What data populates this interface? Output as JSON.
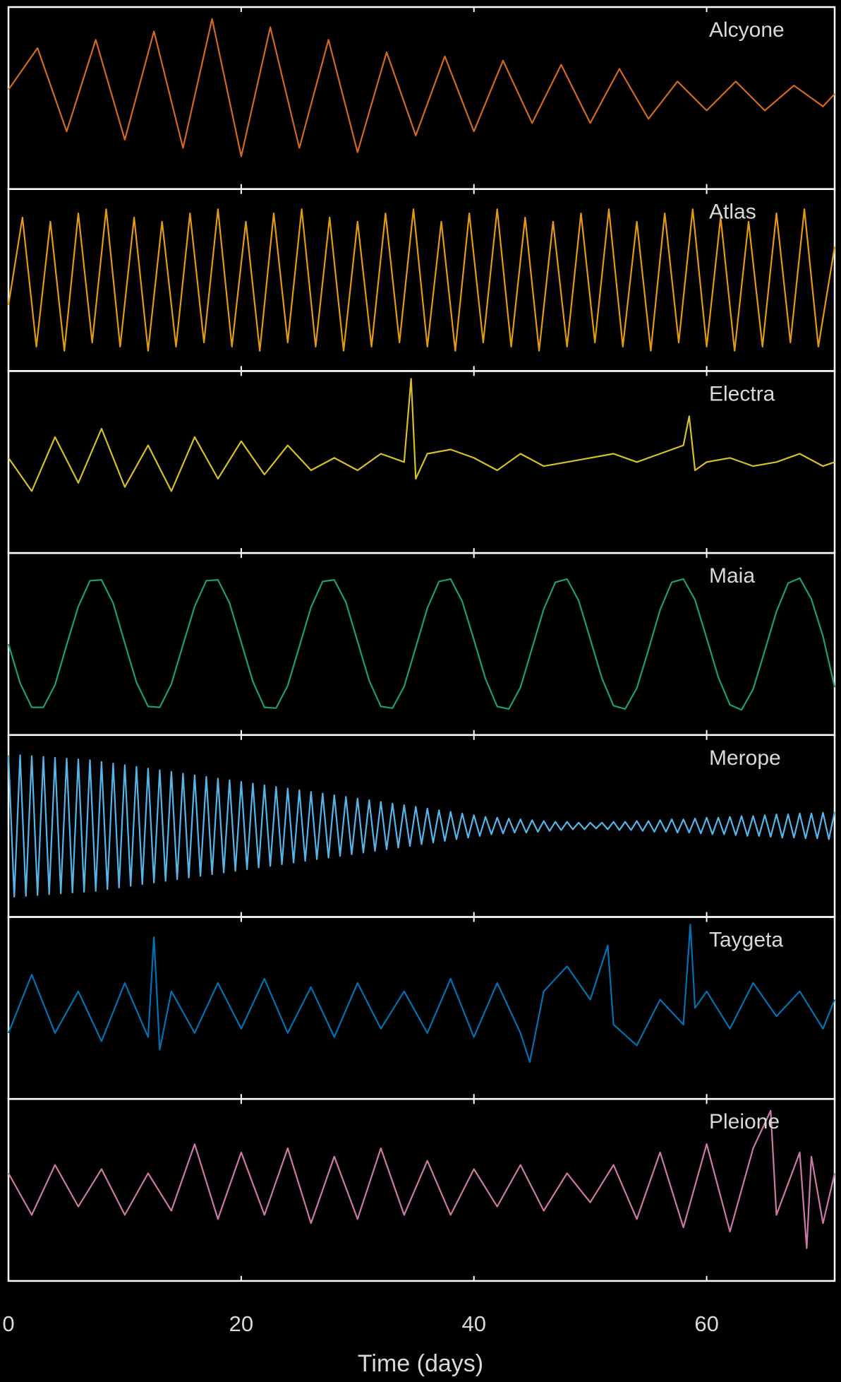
{
  "chart_data": {
    "type": "line",
    "title": "",
    "xlabel": "Time (days)",
    "xlim": [
      0,
      71
    ],
    "xticks": [
      "0",
      "20",
      "40",
      "60"
    ],
    "xtick_values": [
      0,
      20,
      40,
      60
    ],
    "grid": false,
    "background": "#000000",
    "axis_color": "#ffffff",
    "series": [
      {
        "name": "Alcyone",
        "color": "#d2691e",
        "x": [
          0,
          2.5,
          5,
          7.5,
          10,
          12.5,
          15,
          17.5,
          20,
          22.5,
          25,
          27.5,
          30,
          32.5,
          35,
          37.5,
          40,
          42.5,
          45,
          47.5,
          50,
          52.5,
          55,
          57.5,
          60,
          62.5,
          65,
          67.5,
          70,
          71
        ],
        "y": [
          0.1,
          0.6,
          -0.4,
          0.7,
          -0.5,
          0.8,
          -0.6,
          0.95,
          -0.7,
          0.85,
          -0.6,
          0.7,
          -0.65,
          0.55,
          -0.45,
          0.5,
          -0.4,
          0.45,
          -0.3,
          0.4,
          -0.3,
          0.35,
          -0.25,
          0.2,
          -0.15,
          0.2,
          -0.15,
          0.15,
          -0.1,
          0.05
        ]
      },
      {
        "name": "Atlas",
        "color": "#e39a12",
        "x": [
          0,
          1.2,
          2.4,
          3.6,
          4.8,
          6,
          7.2,
          8.4,
          9.6,
          10.8,
          12,
          13.2,
          14.4,
          15.6,
          16.8,
          18,
          19.2,
          20.4,
          21.6,
          22.8,
          24,
          25.2,
          26.4,
          27.6,
          28.8,
          30,
          31.2,
          32.4,
          33.6,
          34.8,
          36,
          37.2,
          38.4,
          39.6,
          40.8,
          42,
          43.2,
          44.4,
          45.6,
          46.8,
          48,
          49.2,
          50.4,
          51.6,
          52.8,
          54,
          55.2,
          56.4,
          57.6,
          58.8,
          60,
          61.2,
          62.4,
          63.6,
          64.8,
          66,
          67.2,
          68.4,
          69.6,
          71
        ],
        "y": [
          -0.3,
          0.75,
          -0.8,
          0.7,
          -0.85,
          0.8,
          -0.75,
          0.85,
          -0.8,
          0.75,
          -0.85,
          0.7,
          -0.8,
          0.8,
          -0.75,
          0.85,
          -0.8,
          0.7,
          -0.85,
          0.8,
          -0.75,
          0.85,
          -0.8,
          0.75,
          -0.85,
          0.7,
          -0.8,
          0.8,
          -0.75,
          0.85,
          -0.8,
          0.7,
          -0.85,
          0.8,
          -0.75,
          0.85,
          -0.8,
          0.75,
          -0.85,
          0.7,
          -0.8,
          0.8,
          -0.75,
          0.85,
          -0.8,
          0.7,
          -0.85,
          0.8,
          -0.75,
          0.85,
          -0.8,
          0.75,
          -0.85,
          0.7,
          -0.8,
          0.8,
          -0.75,
          0.85,
          -0.8,
          0.4
        ]
      },
      {
        "name": "Electra",
        "color": "#d6c02a",
        "x": [
          0,
          2,
          4,
          6,
          8,
          10,
          12,
          14,
          16,
          18,
          20,
          22,
          24,
          26,
          28,
          30,
          32,
          34,
          34.6,
          35,
          36,
          38,
          40,
          42,
          44,
          46,
          48,
          50,
          52,
          54,
          56,
          58,
          58.5,
          59,
          60,
          62,
          64,
          66,
          68,
          70,
          71
        ],
        "y": [
          0.05,
          -0.35,
          0.3,
          -0.25,
          0.4,
          -0.3,
          0.2,
          -0.35,
          0.3,
          -0.2,
          0.25,
          -0.15,
          0.2,
          -0.1,
          0.05,
          -0.1,
          0.1,
          0.0,
          1.0,
          -0.2,
          0.1,
          0.15,
          0.05,
          -0.1,
          0.1,
          -0.05,
          0.0,
          0.05,
          0.1,
          0.0,
          0.1,
          0.2,
          0.55,
          -0.1,
          0.0,
          0.05,
          -0.05,
          0.0,
          0.1,
          -0.05,
          0.0
        ]
      },
      {
        "name": "Maia",
        "color": "#1b9e77",
        "x": [
          0,
          1,
          2,
          3,
          4,
          5,
          6,
          7,
          8,
          9,
          10,
          11,
          12,
          13,
          14,
          15,
          16,
          17,
          18,
          19,
          20,
          21,
          22,
          23,
          24,
          25,
          26,
          27,
          28,
          29,
          30,
          31,
          32,
          33,
          34,
          35,
          36,
          37,
          38,
          39,
          40,
          41,
          42,
          43,
          44,
          45,
          46,
          47,
          48,
          49,
          50,
          51,
          52,
          53,
          54,
          55,
          56,
          57,
          58,
          59,
          60,
          61,
          62,
          63,
          64,
          65,
          66,
          67,
          68,
          69,
          70,
          71
        ],
        "y": [
          0.0,
          -0.47,
          -0.76,
          -0.76,
          -0.49,
          -0.01,
          0.45,
          0.76,
          0.77,
          0.49,
          0.01,
          -0.46,
          -0.75,
          -0.76,
          -0.48,
          -0.01,
          0.45,
          0.76,
          0.77,
          0.49,
          0.02,
          -0.45,
          -0.76,
          -0.77,
          -0.5,
          -0.03,
          0.44,
          0.75,
          0.77,
          0.5,
          0.03,
          -0.44,
          -0.75,
          -0.77,
          -0.51,
          -0.04,
          0.43,
          0.75,
          0.78,
          0.51,
          0.05,
          -0.42,
          -0.75,
          -0.78,
          -0.52,
          -0.05,
          0.42,
          0.74,
          0.78,
          0.52,
          0.06,
          -0.41,
          -0.74,
          -0.78,
          -0.53,
          -0.07,
          0.41,
          0.74,
          0.78,
          0.53,
          0.07,
          -0.4,
          -0.73,
          -0.79,
          -0.54,
          -0.08,
          0.39,
          0.73,
          0.79,
          0.54,
          0.09,
          -0.52
        ]
      },
      {
        "name": "Merope",
        "color": "#56b4e9",
        "x": [
          0,
          0.5,
          1,
          1.5,
          2,
          2.5,
          3,
          3.5,
          4,
          4.5,
          5,
          5.5,
          6,
          6.5,
          7,
          7.5,
          8,
          8.5,
          9,
          9.5,
          10,
          10.5,
          11,
          11.5,
          12,
          12.5,
          13,
          13.5,
          14,
          14.5,
          15,
          15.5,
          16,
          16.5,
          17,
          17.5,
          18,
          18.5,
          19,
          19.5,
          20,
          20.5,
          21,
          21.5,
          22,
          22.5,
          23,
          23.5,
          24,
          24.5,
          25,
          25.5,
          26,
          26.5,
          27,
          27.5,
          28,
          28.5,
          29,
          29.5,
          30,
          30.5,
          31,
          31.5,
          32,
          32.5,
          33,
          33.5,
          34,
          34.5,
          35,
          35.5,
          36,
          36.5,
          37,
          37.5,
          38,
          38.5,
          39,
          39.5,
          40,
          40.5,
          41,
          41.5,
          42,
          42.5,
          43,
          43.5,
          44,
          44.5,
          45,
          45.5,
          46,
          46.5,
          47,
          47.5,
          48,
          48.5,
          49,
          49.5,
          50,
          50.5,
          51,
          51.5,
          52,
          52.5,
          53,
          53.5,
          54,
          54.5,
          55,
          55.5,
          56,
          56.5,
          57,
          57.5,
          58,
          58.5,
          59,
          59.5,
          60,
          60.5,
          61,
          61.5,
          62,
          62.5,
          63,
          63.5,
          64,
          64.5,
          65,
          65.5,
          66,
          66.5,
          67,
          67.5,
          68,
          68.5,
          69,
          69.5,
          70,
          70.5,
          71
        ],
        "y": [
          0.85,
          -0.85,
          0.85,
          -0.84,
          0.84,
          -0.83,
          0.83,
          -0.82,
          0.82,
          -0.81,
          0.81,
          -0.8,
          0.8,
          -0.79,
          0.79,
          -0.78,
          0.77,
          -0.76,
          0.75,
          -0.74,
          0.73,
          -0.72,
          0.71,
          -0.7,
          0.69,
          -0.68,
          0.67,
          -0.66,
          0.65,
          -0.64,
          0.63,
          -0.62,
          0.61,
          -0.6,
          0.59,
          -0.58,
          0.57,
          -0.56,
          0.55,
          -0.54,
          0.53,
          -0.52,
          0.51,
          -0.5,
          0.49,
          -0.48,
          0.47,
          -0.46,
          0.45,
          -0.44,
          0.43,
          -0.42,
          0.41,
          -0.4,
          0.39,
          -0.38,
          0.37,
          -0.36,
          0.35,
          -0.34,
          0.33,
          -0.32,
          0.31,
          -0.3,
          0.29,
          -0.28,
          0.27,
          -0.26,
          0.25,
          -0.24,
          0.23,
          -0.22,
          0.21,
          -0.2,
          0.19,
          -0.18,
          0.17,
          -0.16,
          0.15,
          -0.14,
          0.13,
          -0.12,
          0.11,
          -0.1,
          0.1,
          -0.09,
          0.09,
          -0.08,
          0.08,
          -0.08,
          0.07,
          -0.07,
          0.06,
          -0.06,
          0.05,
          -0.05,
          0.05,
          -0.04,
          0.04,
          -0.04,
          0.04,
          -0.03,
          0.04,
          -0.04,
          0.05,
          -0.05,
          0.05,
          -0.05,
          0.06,
          -0.06,
          0.06,
          -0.07,
          0.07,
          -0.07,
          0.08,
          -0.08,
          0.08,
          -0.08,
          0.09,
          -0.09,
          0.1,
          -0.1,
          0.1,
          -0.1,
          0.11,
          -0.11,
          0.12,
          -0.12,
          0.12,
          -0.12,
          0.13,
          -0.13,
          0.14,
          -0.14,
          0.14,
          -0.14,
          0.15,
          -0.15,
          0.15,
          -0.15,
          0.16,
          -0.16,
          0.17
        ]
      },
      {
        "name": "Taygeta",
        "color": "#0072b2",
        "x": [
          0,
          2,
          4,
          6,
          8,
          10,
          12,
          12.5,
          13,
          14,
          16,
          18,
          20,
          22,
          24,
          26,
          28,
          30,
          32,
          34,
          36,
          38,
          40,
          42,
          44,
          44.8,
          46,
          48,
          50,
          51.5,
          52,
          54,
          56,
          58,
          58.6,
          59,
          60,
          62,
          64,
          66,
          68,
          70,
          71
        ],
        "y": [
          -0.3,
          0.4,
          -0.3,
          0.2,
          -0.4,
          0.3,
          -0.35,
          0.85,
          -0.5,
          0.2,
          -0.3,
          0.3,
          -0.25,
          0.35,
          -0.3,
          0.25,
          -0.35,
          0.3,
          -0.25,
          0.2,
          -0.3,
          0.35,
          -0.35,
          0.3,
          -0.3,
          -0.65,
          0.2,
          0.5,
          0.1,
          0.75,
          -0.2,
          -0.45,
          0.1,
          -0.2,
          1.0,
          0.0,
          0.2,
          -0.25,
          0.3,
          -0.1,
          0.2,
          -0.25,
          0.1
        ]
      },
      {
        "name": "Pleione",
        "color": "#cc79a7",
        "x": [
          0,
          2,
          4,
          6,
          8,
          10,
          12,
          14,
          16,
          18,
          20,
          22,
          24,
          26,
          28,
          30,
          32,
          34,
          36,
          38,
          40,
          42,
          44,
          46,
          48,
          50,
          52,
          54,
          56,
          58,
          60,
          62,
          64,
          65.5,
          66,
          68,
          68.6,
          69,
          70,
          71
        ],
        "y": [
          0.2,
          -0.3,
          0.3,
          -0.2,
          0.25,
          -0.3,
          0.2,
          -0.25,
          0.55,
          -0.35,
          0.45,
          -0.3,
          0.5,
          -0.4,
          0.4,
          -0.35,
          0.5,
          -0.3,
          0.35,
          -0.3,
          0.25,
          -0.2,
          0.3,
          -0.25,
          0.2,
          -0.15,
          0.3,
          -0.35,
          0.45,
          -0.45,
          0.55,
          -0.5,
          0.5,
          0.95,
          -0.3,
          0.45,
          -0.7,
          0.4,
          -0.4,
          0.2
        ]
      }
    ]
  }
}
